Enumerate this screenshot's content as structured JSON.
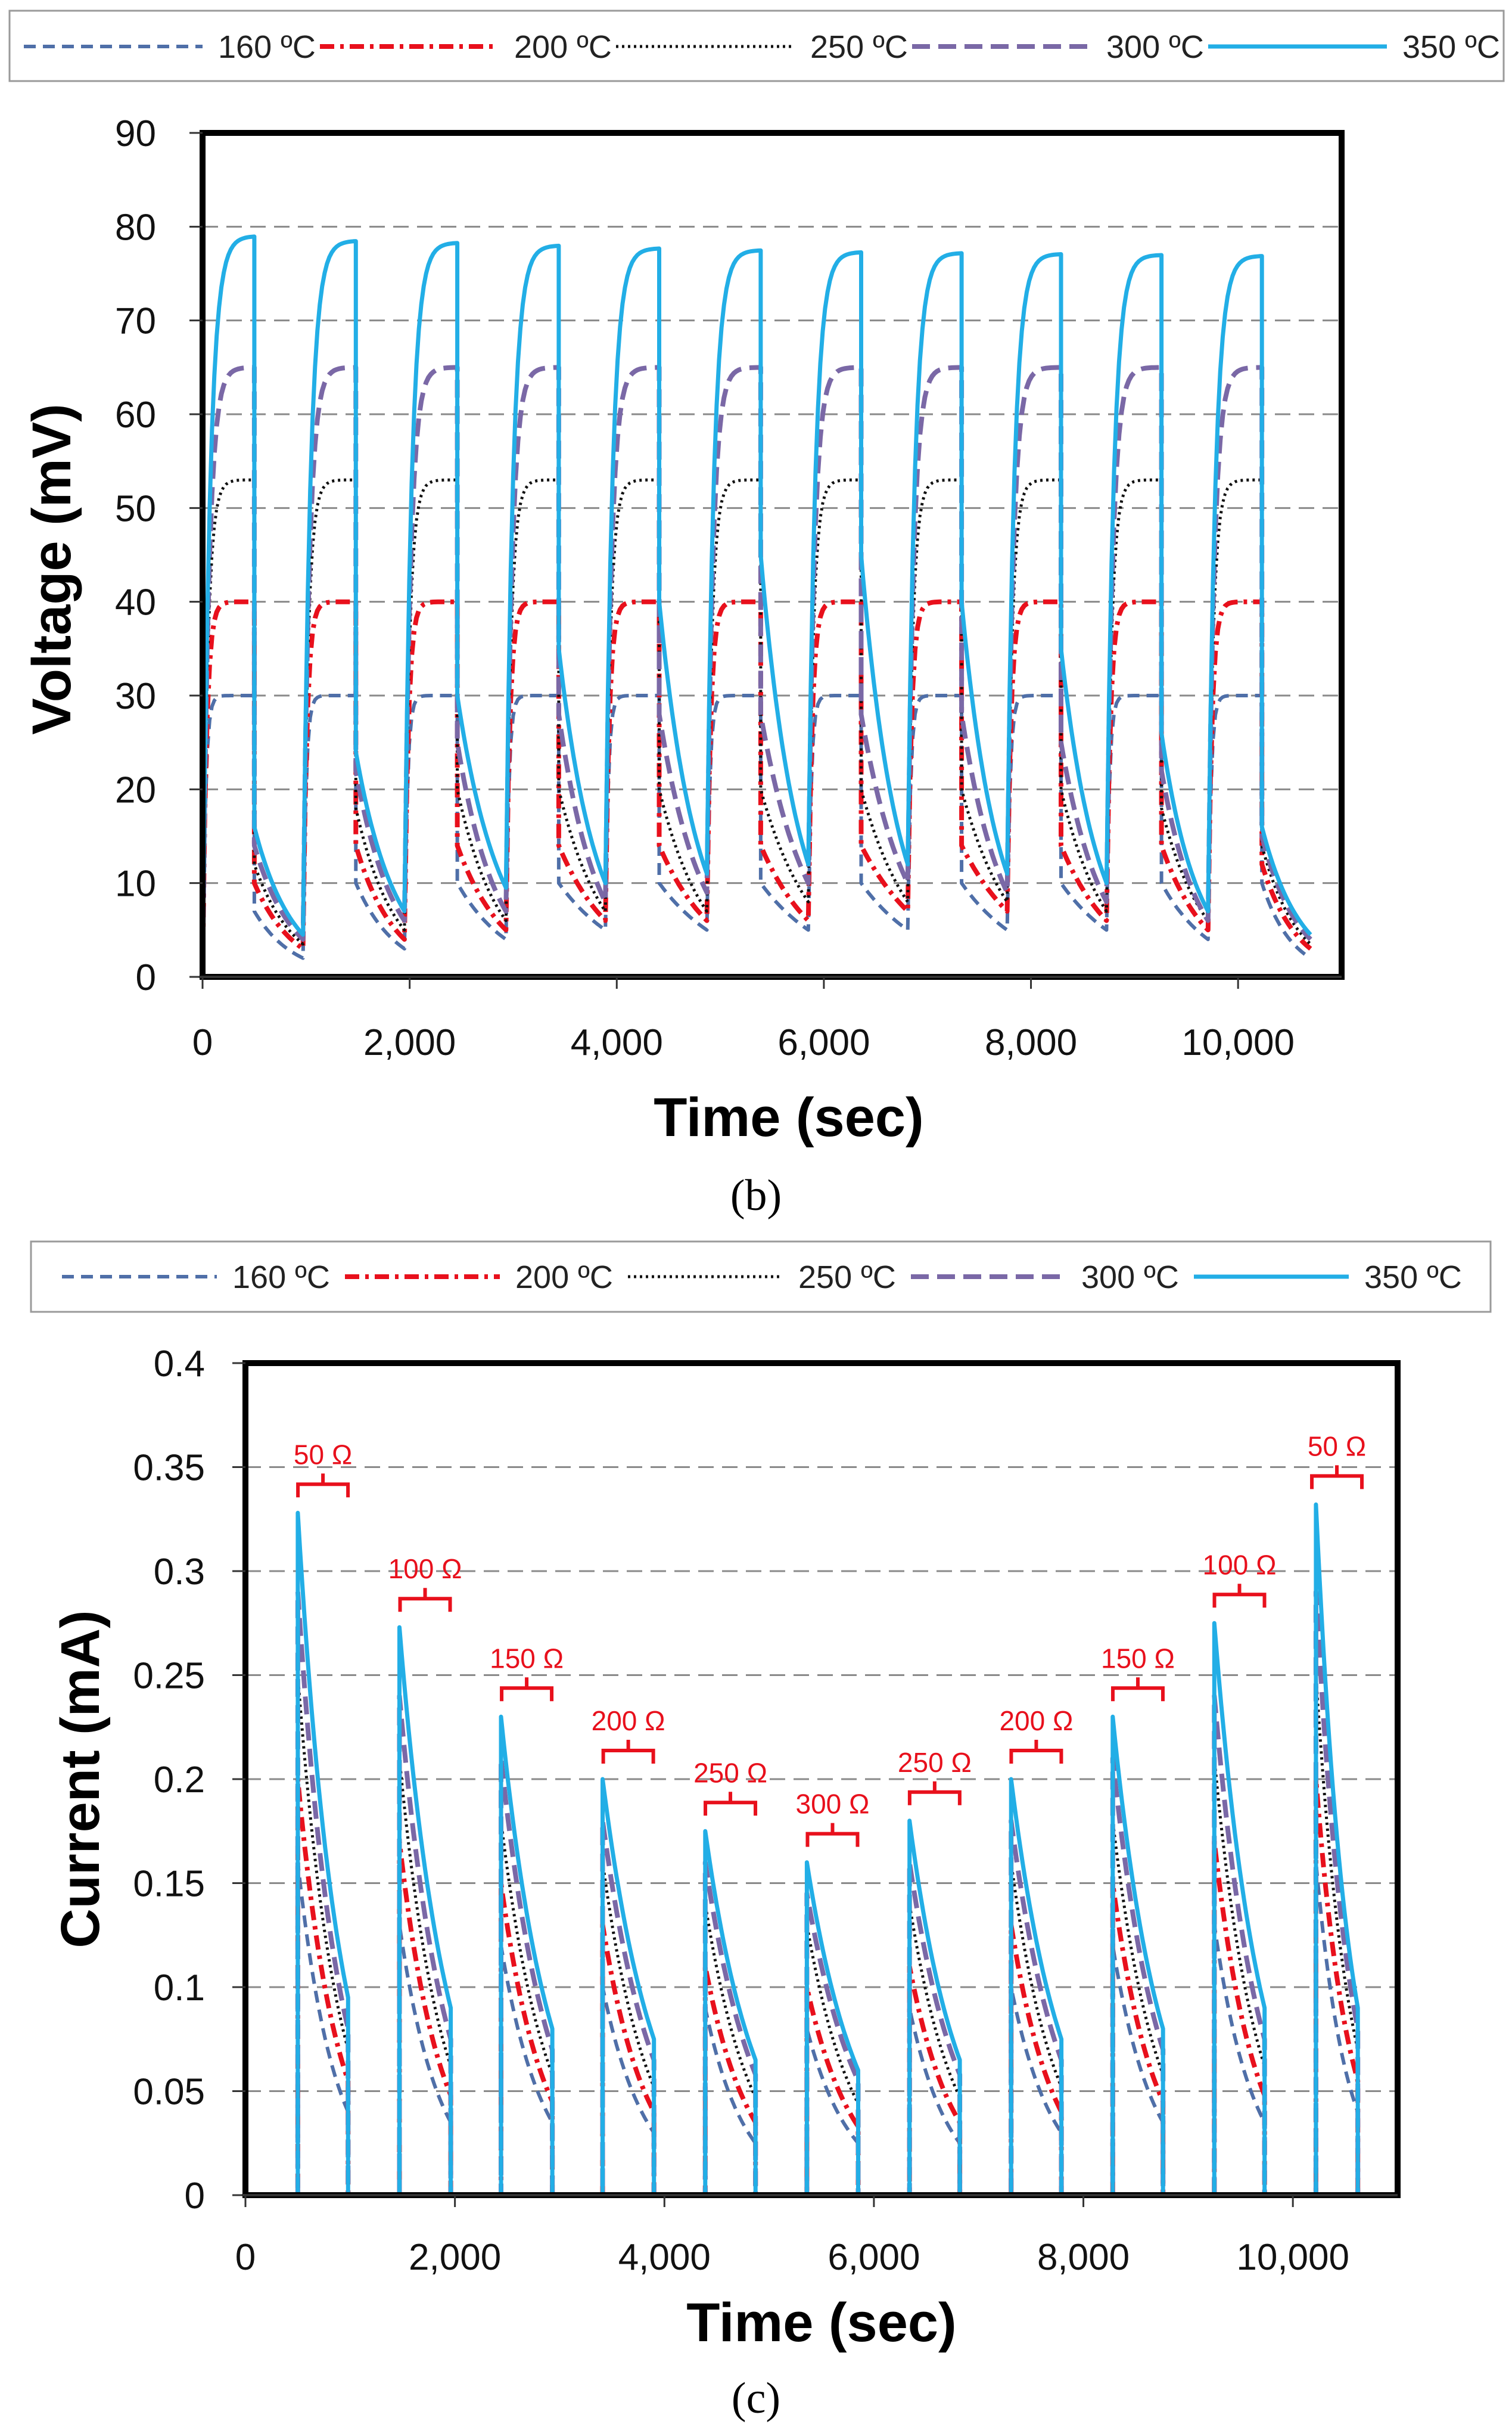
{
  "colors": {
    "c160": "#4f6fa8",
    "c200": "#e8101c",
    "c250": "#111111",
    "c300": "#7a68a6",
    "c350": "#22aee6",
    "annot": "#e8101c",
    "grid": "#8a8a8a"
  },
  "chart_data": [
    {
      "type": "line",
      "panel_label": "(b)",
      "title": "",
      "xlabel": "Time (sec)",
      "ylabel": "Voltage (mV)",
      "xlim": [
        0,
        11000
      ],
      "ylim": [
        0,
        90
      ],
      "x_ticks": [
        0,
        2000,
        4000,
        6000,
        8000,
        10000
      ],
      "x_tick_labels": [
        "0",
        "2,000",
        "4,000",
        "6,000",
        "8,000",
        "10,000"
      ],
      "y_ticks": [
        0,
        10,
        20,
        30,
        40,
        50,
        60,
        70,
        80,
        90
      ],
      "y_tick_labels": [
        "0",
        "10",
        "20",
        "30",
        "40",
        "50",
        "60",
        "70",
        "80",
        "90"
      ],
      "grid": "horizontal-dashed",
      "legend_position": "top",
      "cycle_starts": [
        0,
        970,
        1950,
        2930,
        3890,
        4870,
        5850,
        6810,
        7770,
        8730,
        9710
      ],
      "load_starts": [
        500,
        1480,
        2460,
        3440,
        4410,
        5390,
        6360,
        7330,
        8290,
        9260,
        10230
      ],
      "end_time": 10700,
      "series": [
        {
          "name": "160 ºC",
          "plateau": [
            30,
            30,
            30,
            30,
            30,
            30,
            30,
            30,
            30,
            30,
            30
          ],
          "load_start": [
            7,
            10,
            10,
            10,
            10,
            10,
            10,
            10,
            10,
            10,
            10
          ],
          "load_end": [
            2,
            3,
            4,
            5,
            5,
            5,
            5,
            5,
            5,
            4,
            2
          ]
        },
        {
          "name": "200 ºC",
          "plateau": [
            40,
            40,
            40,
            40,
            40,
            40,
            40,
            40,
            40,
            40,
            40
          ],
          "load_start": [
            10,
            14,
            14,
            14,
            14,
            14,
            14,
            14,
            14,
            14,
            12
          ],
          "load_end": [
            3,
            4,
            5,
            6,
            6,
            6,
            7,
            7,
            6,
            5,
            3
          ]
        },
        {
          "name": "250 ºC",
          "plateau": [
            53,
            53,
            53,
            53,
            53,
            53,
            53,
            53,
            53,
            53,
            53
          ],
          "load_start": [
            12,
            18,
            20,
            20,
            20,
            20,
            20,
            20,
            20,
            18,
            14
          ],
          "load_end": [
            3.5,
            5,
            6,
            7,
            7,
            8,
            8,
            8,
            7,
            6,
            3.5
          ]
        },
        {
          "name": "300 ºC",
          "plateau": [
            65,
            65,
            65,
            65,
            65,
            65,
            65,
            65,
            65,
            65,
            65
          ],
          "load_start": [
            14,
            22,
            25,
            28,
            28,
            28,
            28,
            28,
            25,
            22,
            15
          ],
          "load_end": [
            4,
            6,
            7,
            8,
            9,
            10,
            10,
            9,
            8,
            6,
            4
          ]
        },
        {
          "name": "350 ºC",
          "plateau": [
            79,
            78.5,
            78.3,
            78,
            77.7,
            77.5,
            77.3,
            77.2,
            77.1,
            77,
            76.9
          ],
          "load_start": [
            16,
            24,
            30,
            35,
            40,
            45,
            45,
            40,
            35,
            26,
            16
          ],
          "load_end": [
            4.5,
            7,
            9.5,
            10,
            11,
            12,
            12,
            11,
            10,
            7,
            4.5
          ]
        }
      ]
    },
    {
      "type": "line",
      "panel_label": "(c)",
      "title": "",
      "xlabel": "Time (sec)",
      "ylabel": "Current (mA)",
      "xlim": [
        0,
        11000
      ],
      "ylim": [
        0,
        0.4
      ],
      "x_ticks": [
        0,
        2000,
        4000,
        6000,
        8000,
        10000
      ],
      "x_tick_labels": [
        "0",
        "2,000",
        "4,000",
        "6,000",
        "8,000",
        "10,000"
      ],
      "y_ticks": [
        0,
        0.05,
        0.1,
        0.15,
        0.2,
        0.25,
        0.3,
        0.35,
        0.4
      ],
      "y_tick_labels": [
        "0",
        "0.05",
        "0.1",
        "0.15",
        "0.2",
        "0.25",
        "0.3",
        "0.35",
        "0.4"
      ],
      "grid": "horizontal-dashed",
      "legend_position": "top",
      "load_starts": [
        500,
        1470,
        2440,
        3410,
        4390,
        5360,
        6340,
        7310,
        8280,
        9250,
        10220
      ],
      "load_ends": [
        980,
        1960,
        2930,
        3900,
        4870,
        5850,
        6820,
        7790,
        8760,
        9730,
        10620
      ],
      "resistances": [
        "50 Ω",
        "100 Ω",
        "150 Ω",
        "200 Ω",
        "250 Ω",
        "300 Ω",
        "250 Ω",
        "200 Ω",
        "150 Ω",
        "100 Ω",
        "50 Ω"
      ],
      "series": [
        {
          "name": "160 ºC",
          "peak": [
            0.16,
            0.13,
            0.12,
            0.1,
            0.09,
            0.08,
            0.09,
            0.1,
            0.12,
            0.13,
            0.16
          ],
          "end": [
            0.04,
            0.035,
            0.035,
            0.03,
            0.025,
            0.025,
            0.025,
            0.03,
            0.035,
            0.035,
            0.04
          ]
        },
        {
          "name": "200 ºC",
          "peak": [
            0.2,
            0.17,
            0.15,
            0.13,
            0.11,
            0.1,
            0.11,
            0.13,
            0.15,
            0.17,
            0.2
          ],
          "end": [
            0.055,
            0.048,
            0.045,
            0.04,
            0.035,
            0.033,
            0.035,
            0.04,
            0.045,
            0.048,
            0.055
          ]
        },
        {
          "name": "250 ºC",
          "peak": [
            0.25,
            0.21,
            0.18,
            0.16,
            0.14,
            0.13,
            0.14,
            0.16,
            0.18,
            0.21,
            0.25
          ],
          "end": [
            0.07,
            0.062,
            0.058,
            0.052,
            0.047,
            0.044,
            0.047,
            0.052,
            0.058,
            0.062,
            0.07
          ]
        },
        {
          "name": "300 ºC",
          "peak": [
            0.29,
            0.24,
            0.21,
            0.18,
            0.16,
            0.145,
            0.16,
            0.18,
            0.21,
            0.24,
            0.29
          ],
          "end": [
            0.08,
            0.075,
            0.07,
            0.065,
            0.058,
            0.055,
            0.058,
            0.065,
            0.07,
            0.075,
            0.08
          ]
        },
        {
          "name": "350 ºC",
          "peak": [
            0.328,
            0.273,
            0.23,
            0.2,
            0.175,
            0.16,
            0.18,
            0.2,
            0.23,
            0.275,
            0.332
          ],
          "end": [
            0.095,
            0.09,
            0.08,
            0.075,
            0.065,
            0.06,
            0.065,
            0.075,
            0.08,
            0.09,
            0.09
          ]
        }
      ]
    }
  ]
}
